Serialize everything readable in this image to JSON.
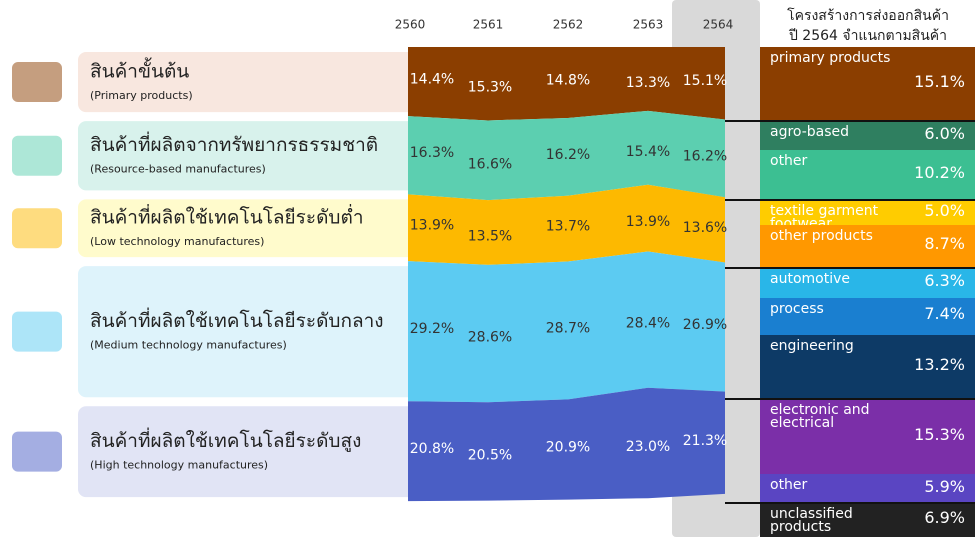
{
  "chart_data": {
    "type": "stacked-area",
    "x": [
      "2560",
      "2561",
      "2562",
      "2563",
      "2564"
    ],
    "series": [
      {
        "name": "สินค้าขั้นต้น",
        "subtitle": "(Primary products)",
        "color": "#8b3e00",
        "panel_color": "#f8e7df",
        "label_color": "#ffffff",
        "values": [
          14.4,
          15.3,
          14.8,
          13.3,
          15.1
        ],
        "value_labels": [
          "14.4%",
          "15.3%",
          "14.8%",
          "13.3%",
          "15.1%"
        ],
        "breakdown": [
          {
            "name": "primary products",
            "color": "#8b3e00",
            "value": 15.1,
            "value_label": "15.1%"
          }
        ]
      },
      {
        "name": "สินค้าที่ผลิตจากทรัพยากรธรรมชาติ",
        "subtitle": "(Resource-based manufactures)",
        "color": "#5ccfb0",
        "panel_color": "#d8f2ec",
        "label_color": "#333333",
        "values": [
          16.3,
          16.6,
          16.2,
          15.4,
          16.2
        ],
        "value_labels": [
          "16.3%",
          "16.6%",
          "16.2%",
          "15.4%",
          "16.2%"
        ],
        "breakdown": [
          {
            "name": "agro-based",
            "color": "#2f7f60",
            "value": 6.0,
            "value_label": "6.0%"
          },
          {
            "name": "other",
            "color": "#3cbf92",
            "value": 10.2,
            "value_label": "10.2%"
          }
        ]
      },
      {
        "name": "สินค้าที่ผลิตใช้เทคโนโลยีระดับต่ำ",
        "subtitle": "(Low technology manufactures)",
        "color": "#fdb900",
        "panel_color": "#fffbcc",
        "label_color": "#333333",
        "values": [
          13.9,
          13.5,
          13.7,
          13.9,
          13.6
        ],
        "value_labels": [
          "13.9%",
          "13.5%",
          "13.7%",
          "13.9%",
          "13.6%"
        ],
        "breakdown": [
          {
            "name": "textile garment footwear",
            "color": "#ffcc00",
            "value": 5.0,
            "value_label": "5.0%"
          },
          {
            "name": "other products",
            "color": "#ff9800",
            "value": 8.7,
            "value_label": "8.7%"
          }
        ]
      },
      {
        "name": "สินค้าที่ผลิตใช้เทคโนโลยีระดับกลาง",
        "subtitle": "(Medium technology manufactures)",
        "color": "#5ccbf2",
        "panel_color": "#def3fb",
        "label_color": "#333333",
        "values": [
          29.2,
          28.6,
          28.7,
          28.4,
          26.9
        ],
        "value_labels": [
          "29.2%",
          "28.6%",
          "28.7%",
          "28.4%",
          "26.9%"
        ],
        "breakdown": [
          {
            "name": "automotive",
            "color": "#29b6e8",
            "value": 6.3,
            "value_label": "6.3%"
          },
          {
            "name": "process",
            "color": "#1a7fd0",
            "value": 7.4,
            "value_label": "7.4%"
          },
          {
            "name": "engineering",
            "color": "#0d3a66",
            "value": 13.2,
            "value_label": "13.2%"
          }
        ]
      },
      {
        "name": "สินค้าที่ผลิตใช้เทคโนโลยีระดับสูง",
        "subtitle": "(High technology manufactures)",
        "color": "#4a5ec5",
        "panel_color": "#e1e4f5",
        "label_color": "#ffffff",
        "values": [
          20.8,
          20.5,
          20.9,
          23.0,
          21.3
        ],
        "value_labels": [
          "20.8%",
          "20.5%",
          "20.9%",
          "23.0%",
          "21.3%"
        ],
        "breakdown": [
          {
            "name": "electronic and electrical",
            "color": "#7b2fa8",
            "value": 15.3,
            "value_label": "15.3%"
          },
          {
            "name": "other",
            "color": "#5a45c2",
            "value": 5.9,
            "value_label": "5.9%"
          }
        ]
      }
    ],
    "unclassified": {
      "name": "unclassified products",
      "color": "#222222",
      "value": 6.9,
      "value_label": "6.9%"
    },
    "breakdown_title": [
      "โครงสร้างการส่งออกสินค้า",
      "ปี 2564 จำแนกตามสินค้า"
    ]
  }
}
